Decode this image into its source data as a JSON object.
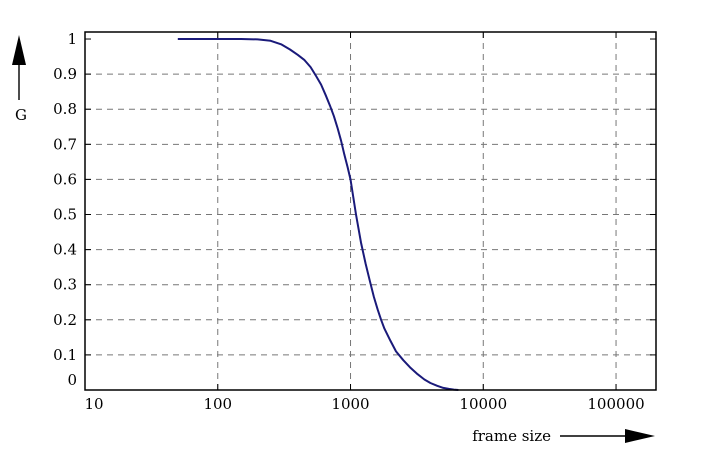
{
  "chart_data": {
    "type": "line",
    "title": "",
    "xlabel": "frame size",
    "ylabel": "G",
    "x_scale": "log",
    "xlim": [
      10,
      200000
    ],
    "ylim": [
      0,
      1.02
    ],
    "x_ticks": [
      "10",
      "100",
      "1000",
      "10000",
      "100000"
    ],
    "y_ticks": [
      "0",
      "0.1",
      "0.2",
      "0.3",
      "0.4",
      "0.5",
      "0.6",
      "0.7",
      "0.8",
      "0.9",
      "1"
    ],
    "grid": true,
    "series": [
      {
        "color": "#1a1a7a",
        "x": [
          50,
          100,
          150,
          200,
          250,
          300,
          350,
          400,
          450,
          500,
          550,
          600,
          650,
          700,
          750,
          800,
          850,
          900,
          950,
          1000,
          1100,
          1200,
          1300,
          1400,
          1500,
          1600,
          1700,
          1800,
          2000,
          2200,
          2500,
          2800,
          3200,
          3600,
          4000,
          4500,
          5000,
          5500,
          6000,
          6500
        ],
        "y": [
          1.0,
          1.0,
          1.0,
          0.999,
          0.995,
          0.985,
          0.97,
          0.955,
          0.94,
          0.92,
          0.895,
          0.87,
          0.84,
          0.81,
          0.78,
          0.745,
          0.71,
          0.67,
          0.635,
          0.6,
          0.5,
          0.42,
          0.36,
          0.31,
          0.265,
          0.23,
          0.2,
          0.175,
          0.14,
          0.11,
          0.085,
          0.065,
          0.045,
          0.03,
          0.02,
          0.012,
          0.006,
          0.003,
          0.001,
          0.0
        ]
      }
    ]
  }
}
